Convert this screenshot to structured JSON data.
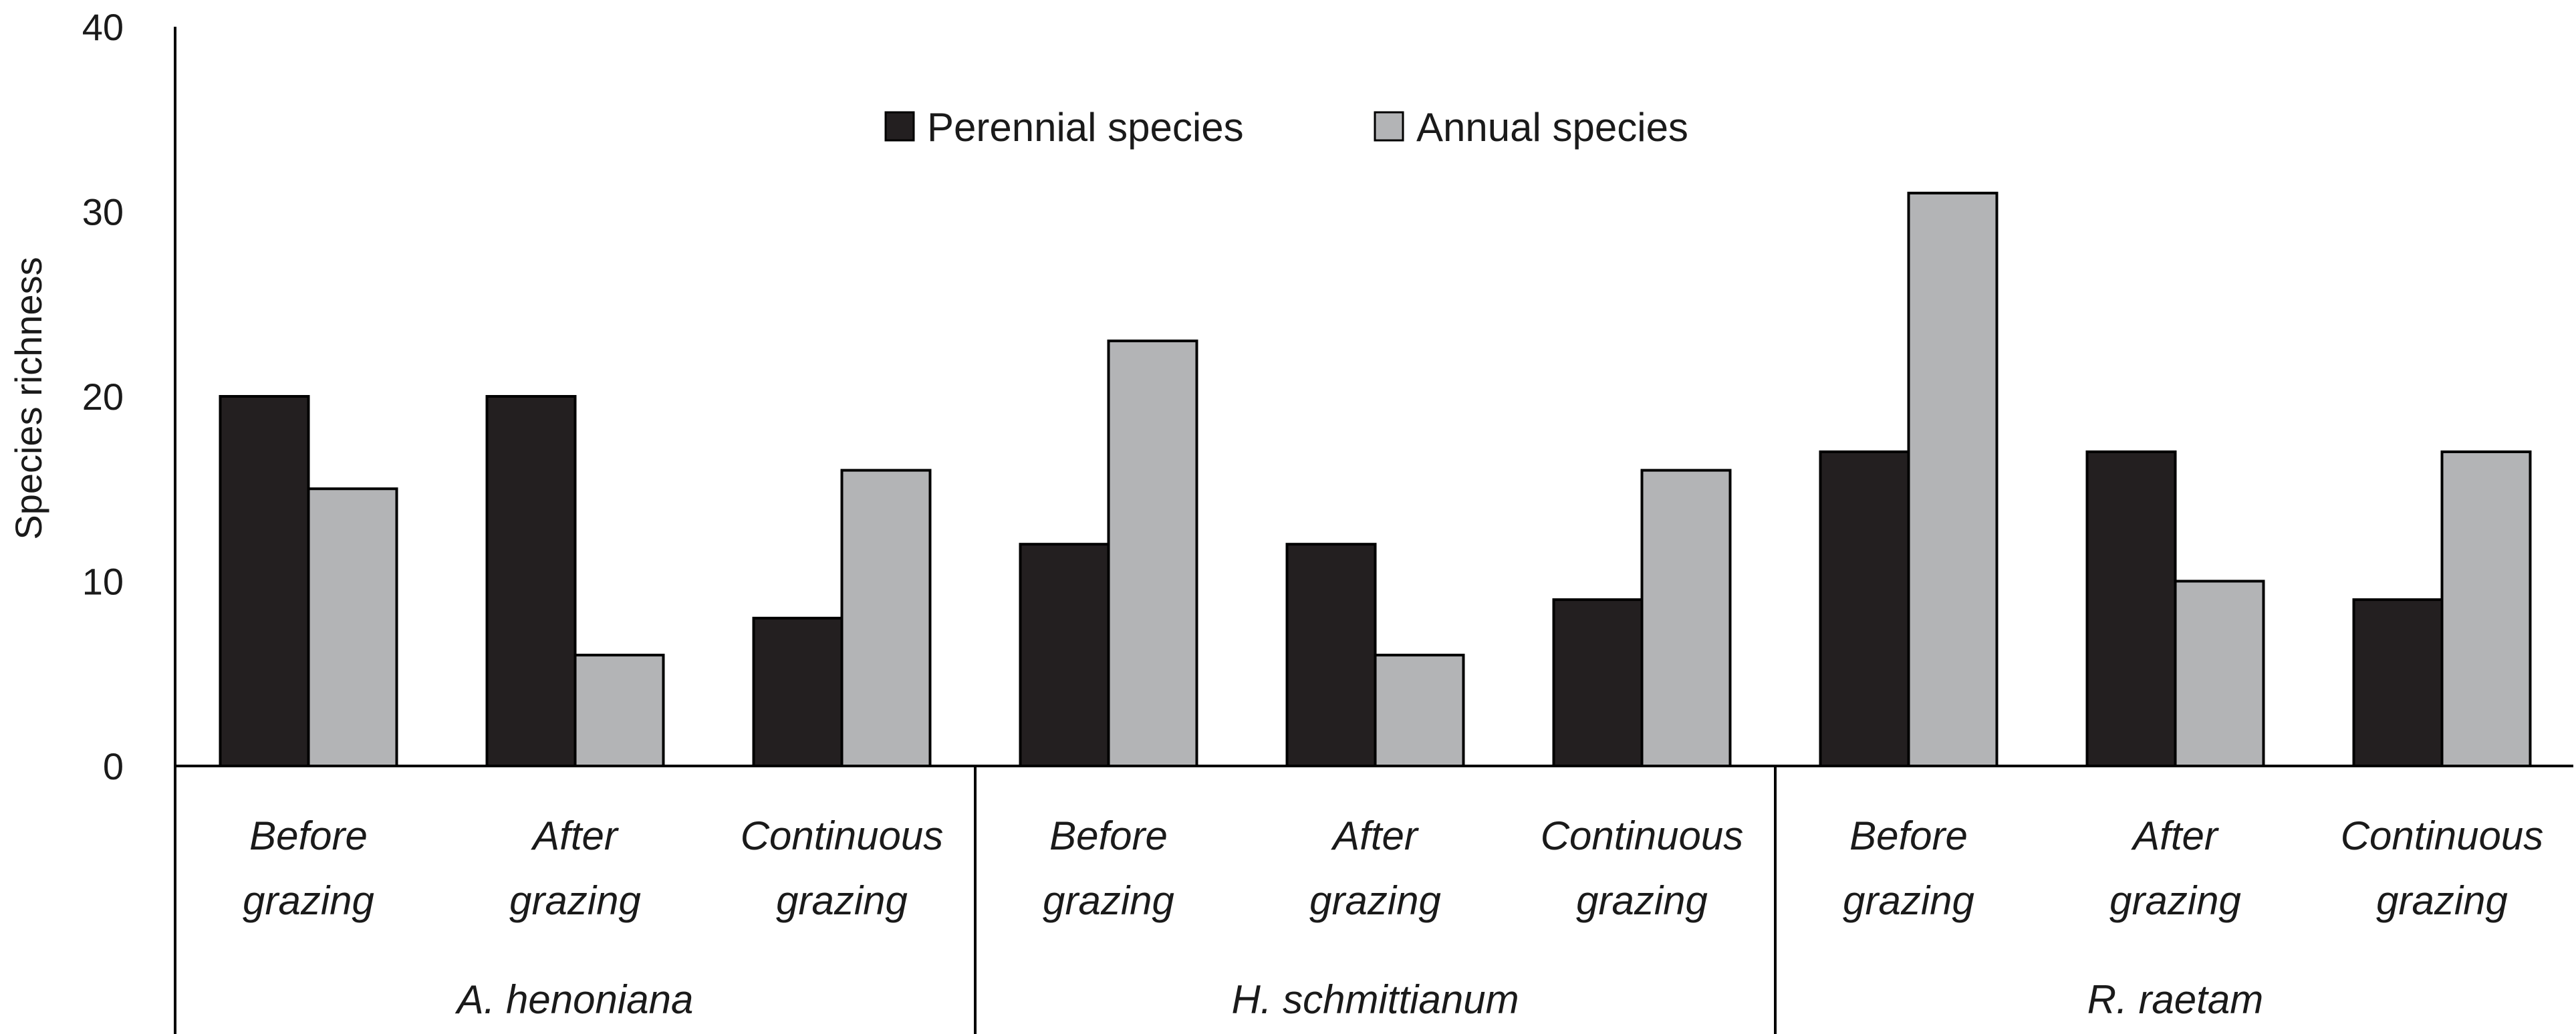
{
  "chart_data": {
    "type": "bar",
    "title": "",
    "xlabel": "",
    "ylabel": "Species richness",
    "ylim": [
      0,
      40
    ],
    "yticks": [
      "0",
      "10",
      "20",
      "30",
      "40"
    ],
    "legend": {
      "placement": "top-center",
      "entries": [
        "Perennial species",
        "Annual species"
      ]
    },
    "groups": [
      {
        "name": "A. henoniana",
        "categories": [
          [
            "Before",
            "grazing"
          ],
          [
            "After",
            "grazing"
          ],
          [
            "Continuous",
            "grazing"
          ]
        ]
      },
      {
        "name": "H. schmittianum",
        "categories": [
          [
            "Before",
            "grazing"
          ],
          [
            "After",
            "grazing"
          ],
          [
            "Continuous",
            "grazing"
          ]
        ]
      },
      {
        "name": "R. raetam",
        "categories": [
          [
            "Before",
            "grazing"
          ],
          [
            "After",
            "grazing"
          ],
          [
            "Continuous",
            "grazing"
          ]
        ]
      }
    ],
    "series": [
      {
        "name": "Perennial species",
        "color": "#231f20",
        "values": [
          20,
          20,
          8,
          12,
          12,
          9,
          17,
          17,
          9
        ]
      },
      {
        "name": "Annual species",
        "color": "#b3b4b6",
        "values": [
          15,
          6,
          16,
          23,
          6,
          16,
          31,
          10,
          17
        ]
      }
    ]
  }
}
